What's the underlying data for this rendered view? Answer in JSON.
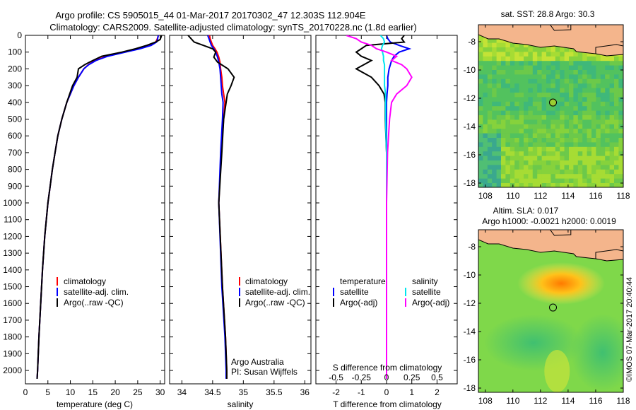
{
  "header": {
    "line1": "Argo profile: CS 5905015_44 01-Mar-2017 20170302_47 12.303S 112.904E",
    "line2": "Climatology: CARS2009. Satellite-adjusted climatology: synTS_20170228.nc (1.8d earlier)"
  },
  "panels": {
    "temperature": {
      "xlabel": "temperature (deg C)",
      "legend": [
        "climatology",
        "satellite-adj. clim.",
        "Argo(..raw -QC)"
      ]
    },
    "salinity": {
      "xlabel": "salinity",
      "legend": [
        "climatology",
        "satellite-adj. clim.",
        "Argo(..raw -QC)"
      ],
      "note1": "Argo Australia",
      "note2": "PI: Susan Wijffels"
    },
    "difference": {
      "xlabel_top": "S difference from climatology",
      "xlabel_bottom": "T difference from climatology",
      "legend_left_head": "temperature",
      "legend_right_head": "salinity",
      "legend_left": [
        "satellite",
        "Argo(-adj)"
      ],
      "legend_right": [
        "satellite",
        "Argo(-adj)"
      ]
    },
    "sst_map": {
      "title": "sat. SST: 28.8 Argo: 30.3"
    },
    "sla_map": {
      "title1": "Altim. SLA: 0.017",
      "title2": "Argo h1000: -0.0021 h2000: 0.0019"
    },
    "credit": "©IMOS 07-Mar-2017 20:40:44"
  },
  "colors": {
    "climatology": "#ff0000",
    "satellite": "#0000ff",
    "argo": "#000000",
    "salinity_sat": "#00e5ee",
    "salinity_argo": "#ff00ff",
    "land": "#f4b58c"
  },
  "chart_data": [
    {
      "type": "line",
      "panel": "temperature",
      "xlabel": "temperature (deg C)",
      "ylabel": "",
      "xlim": [
        0,
        31
      ],
      "ylim": [
        2080,
        0
      ],
      "xticks": [
        0,
        5,
        10,
        15,
        20,
        25,
        30
      ],
      "yticks": [
        0,
        100,
        200,
        300,
        400,
        500,
        600,
        700,
        800,
        900,
        1000,
        1100,
        1200,
        1300,
        1400,
        1500,
        1600,
        1700,
        1800,
        1900,
        2000
      ],
      "depth": [
        0,
        10,
        25,
        40,
        60,
        80,
        100,
        125,
        150,
        175,
        200,
        250,
        300,
        400,
        500,
        600,
        700,
        800,
        900,
        1000,
        1200,
        1400,
        1600,
        1800,
        2000,
        2050
      ],
      "series": [
        {
          "name": "climatology",
          "values": [
            29.6,
            29.5,
            29.3,
            29.0,
            27.5,
            25.0,
            22.0,
            18.0,
            15.5,
            14.0,
            13.0,
            11.8,
            10.8,
            9.2,
            8.1,
            7.2,
            6.6,
            6.0,
            5.5,
            5.0,
            4.3,
            3.8,
            3.4,
            3.0,
            2.7,
            2.6
          ]
        },
        {
          "name": "satellite-adj. clim.",
          "values": [
            29.6,
            29.5,
            29.4,
            29.2,
            28.0,
            25.5,
            22.3,
            18.3,
            15.7,
            14.1,
            13.0,
            11.8,
            10.8,
            9.2,
            8.1,
            7.2,
            6.6,
            6.0,
            5.5,
            5.0,
            4.3,
            3.8,
            3.4,
            3.0,
            2.7,
            2.6
          ]
        },
        {
          "name": "Argo(..raw -QC)",
          "values": [
            30.3,
            30.2,
            30.0,
            29.0,
            27.0,
            24.5,
            21.5,
            17.0,
            15.0,
            13.2,
            11.8,
            11.5,
            10.5,
            9.2,
            8.1,
            7.2,
            6.6,
            6.0,
            5.5,
            5.0,
            4.3,
            3.8,
            3.4,
            3.0,
            2.7,
            2.6
          ]
        }
      ]
    },
    {
      "type": "line",
      "panel": "salinity",
      "xlabel": "salinity",
      "ylabel": "",
      "xlim": [
        33.8,
        36.1
      ],
      "ylim": [
        2080,
        0
      ],
      "xticks": [
        34,
        34.5,
        35,
        35.5,
        36
      ],
      "depth": [
        0,
        20,
        40,
        60,
        80,
        100,
        130,
        160,
        200,
        250,
        300,
        350,
        400,
        500,
        700,
        1000,
        1500,
        1800,
        2000,
        2050
      ],
      "series": [
        {
          "name": "climatology",
          "values": [
            34.45,
            34.46,
            34.48,
            34.5,
            34.54,
            34.57,
            34.6,
            34.62,
            34.63,
            34.65,
            34.66,
            34.68,
            34.7,
            34.68,
            34.64,
            34.6,
            34.66,
            34.71,
            34.73,
            34.73
          ]
        },
        {
          "name": "satellite-adj. clim.",
          "values": [
            34.42,
            34.44,
            34.46,
            34.48,
            34.52,
            34.55,
            34.58,
            34.6,
            34.62,
            34.63,
            34.64,
            34.65,
            34.67,
            34.66,
            34.63,
            34.6,
            34.65,
            34.7,
            34.72,
            34.72
          ]
        },
        {
          "name": "Argo(..raw -QC)",
          "values": [
            34.1,
            34.15,
            34.2,
            34.35,
            34.5,
            34.55,
            34.52,
            34.58,
            34.75,
            34.85,
            34.8,
            34.74,
            34.72,
            34.68,
            34.65,
            34.6,
            34.66,
            34.71,
            34.73,
            34.73
          ]
        }
      ]
    },
    {
      "type": "line",
      "panel": "difference",
      "xlabel": "T difference from climatology",
      "x2label": "S difference from climatology",
      "xlim": [
        -2.8,
        2.8
      ],
      "x2lim": [
        -0.7,
        0.7
      ],
      "ylim": [
        2080,
        0
      ],
      "xticks": [
        -2,
        -1,
        0,
        1,
        2
      ],
      "x2ticks": [
        -0.5,
        -0.25,
        0,
        0.25,
        0.5
      ],
      "depth": [
        0,
        20,
        40,
        60,
        80,
        100,
        125,
        150,
        175,
        200,
        250,
        300,
        350,
        400,
        500,
        700,
        1000,
        1500,
        2000,
        2050
      ],
      "series": [
        {
          "name": "temperature satellite",
          "axis": "T",
          "values": [
            0.0,
            0.05,
            0.15,
            0.5,
            0.9,
            0.5,
            0.3,
            0.2,
            0.15,
            0.1,
            0.05,
            0.05,
            0.02,
            0.0,
            0.0,
            0.0,
            0.0,
            0.0,
            0.0,
            0.0
          ]
        },
        {
          "name": "temperature Argo(-adj)",
          "axis": "T",
          "values": [
            0.7,
            0.6,
            0.7,
            -0.8,
            -1.0,
            -1.2,
            -1.0,
            -0.6,
            -0.9,
            -1.2,
            -0.6,
            -0.3,
            -0.1,
            -0.05,
            -0.05,
            0.0,
            0.0,
            0.0,
            0.0,
            0.0
          ]
        },
        {
          "name": "salinity satellite",
          "axis": "S",
          "values": [
            -0.06,
            -0.03,
            -0.02,
            -0.04,
            -0.05,
            -0.04,
            -0.03,
            -0.03,
            -0.02,
            -0.02,
            -0.02,
            -0.02,
            -0.01,
            -0.01,
            -0.01,
            0.0,
            0.0,
            0.0,
            0.0,
            0.0
          ]
        },
        {
          "name": "salinity Argo(-adj)",
          "axis": "S",
          "values": [
            -0.4,
            -0.3,
            -0.25,
            -0.15,
            -0.1,
            0.0,
            0.1,
            0.05,
            0.15,
            0.2,
            0.25,
            0.2,
            0.1,
            0.05,
            0.03,
            0.01,
            0.0,
            0.0,
            0.0,
            0.0
          ]
        }
      ]
    },
    {
      "type": "heatmap",
      "panel": "sst_map",
      "title": "sat. SST: 28.8 Argo: 30.3",
      "xlim": [
        107.5,
        118
      ],
      "ylim": [
        -18.3,
        -6.8
      ],
      "xticks": [
        108,
        110,
        112,
        114,
        116,
        118
      ],
      "yticks": [
        -8,
        -10,
        -12,
        -14,
        -16,
        -18
      ],
      "argo_position": {
        "lon": 112.904,
        "lat": -12.303
      }
    },
    {
      "type": "heatmap",
      "panel": "sla_map",
      "title": "Altim. SLA: 0.017",
      "subtitle": "Argo h1000: -0.0021 h2000: 0.0019",
      "xlim": [
        107.5,
        118
      ],
      "ylim": [
        -18.3,
        -6.8
      ],
      "xticks": [
        108,
        110,
        112,
        114,
        116,
        118
      ],
      "yticks": [
        -8,
        -10,
        -12,
        -14,
        -16,
        -18
      ],
      "argo_position": {
        "lon": 112.904,
        "lat": -12.303
      }
    }
  ]
}
